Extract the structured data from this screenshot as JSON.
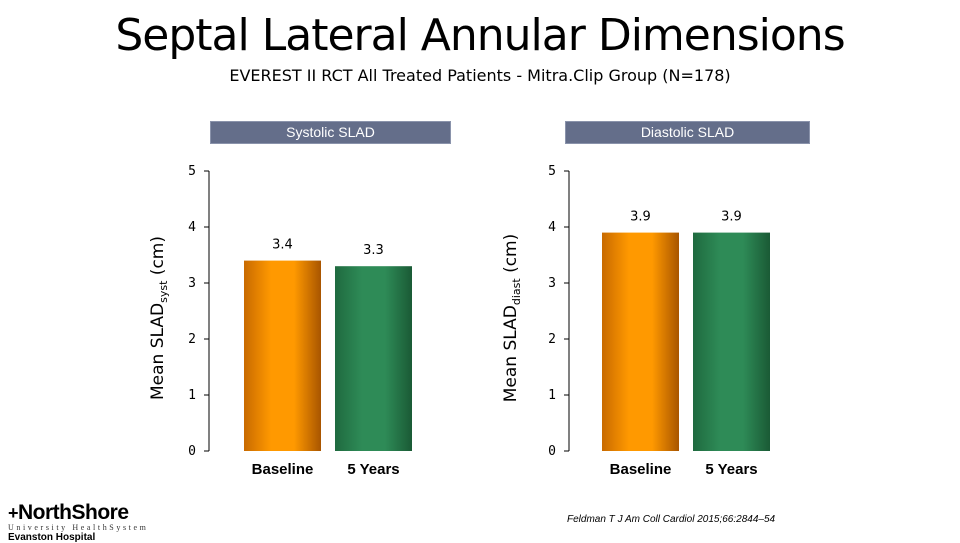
{
  "header": {
    "title": "Septal Lateral Annular Dimensions",
    "subtitle": "EVEREST II RCT All Treated Patients - Mitra.Clip Group (N=178)"
  },
  "colors": {
    "baseline": "#ff9900",
    "five_years": "#2e8b57",
    "header_bg": "#646e8a"
  },
  "chart_data": [
    {
      "type": "bar",
      "title": "Systolic SLAD",
      "categories": [
        "Baseline",
        "5 Years"
      ],
      "values": [
        3.4,
        3.3
      ],
      "value_labels": [
        "3.4",
        "3.3"
      ],
      "ylabel_main": "Mean SLAD",
      "ylabel_sub": "syst",
      "ylabel_unit": " (cm)",
      "ylim": [
        0,
        5
      ],
      "yticks": [
        "0",
        "1",
        "2",
        "3",
        "4",
        "5"
      ]
    },
    {
      "type": "bar",
      "title": "Diastolic SLAD",
      "categories": [
        "Baseline",
        "5 Years"
      ],
      "values": [
        3.9,
        3.9
      ],
      "value_labels": [
        "3.9",
        "3.9"
      ],
      "ylabel_main": "Mean SLAD",
      "ylabel_sub": "diast",
      "ylabel_unit": " (cm)",
      "ylim": [
        0,
        5
      ],
      "yticks": [
        "0",
        "1",
        "2",
        "3",
        "4",
        "5"
      ]
    }
  ],
  "logo": {
    "name": "NorthShore",
    "plus": "+",
    "subline": "University HealthSystem",
    "hospital": "Evanston Hospital"
  },
  "citation": "Feldman T J Am Coll Cardiol 2015;66:2844–54"
}
